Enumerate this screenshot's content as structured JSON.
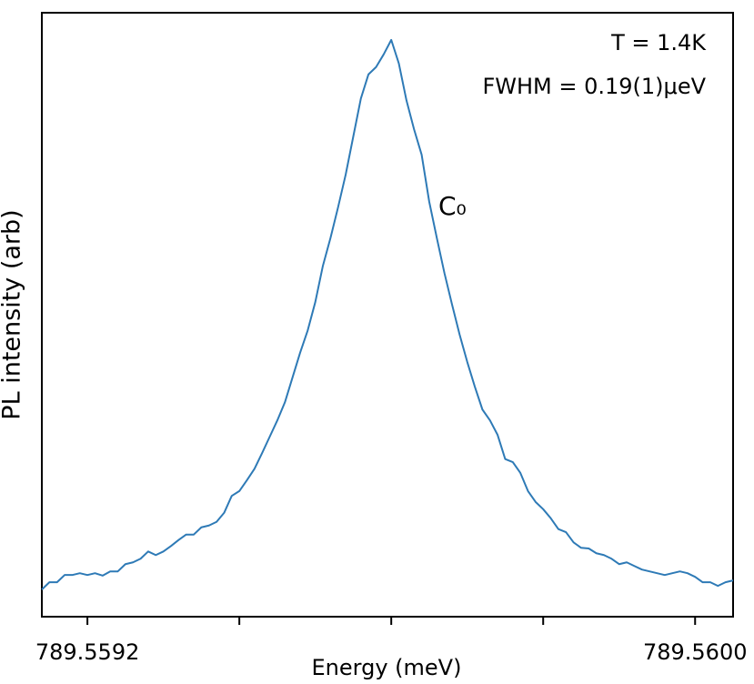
{
  "chart_data": {
    "type": "line",
    "xlabel": "Energy (meV)",
    "ylabel": "PL intensity (arb)",
    "annotations": [
      "T = 1.4K",
      "FWHM = 0.19(1)μeV",
      "C₀"
    ],
    "x": [
      789.55914,
      789.55915,
      789.55916,
      789.55917,
      789.55918,
      789.55919,
      789.5592,
      789.55921,
      789.55922,
      789.55923,
      789.55924,
      789.55925,
      789.55926,
      789.55927,
      789.55928,
      789.55929,
      789.5593,
      789.55931,
      789.55932,
      789.55933,
      789.55934,
      789.55935,
      789.55936,
      789.55937,
      789.55938,
      789.55939,
      789.5594,
      789.55941,
      789.55942,
      789.55943,
      789.55944,
      789.55945,
      789.55946,
      789.55947,
      789.55948,
      789.55949,
      789.5595,
      789.55951,
      789.55952,
      789.55953,
      789.55954,
      789.55955,
      789.55956,
      789.55957,
      789.55958,
      789.55959,
      789.5596,
      789.55961,
      789.55962,
      789.55963,
      789.55964,
      789.55965,
      789.55966,
      789.55967,
      789.55968,
      789.55969,
      789.5597,
      789.55971,
      789.55972,
      789.55973,
      789.55974,
      789.55975,
      789.55976,
      789.55977,
      789.55978,
      789.55979,
      789.5598,
      789.55981,
      789.55982,
      789.55983,
      789.55984,
      789.55985,
      789.55986,
      789.55987,
      789.55988,
      789.55989,
      789.5599,
      789.55991,
      789.55992,
      789.55993,
      789.55994,
      789.55995,
      789.55996,
      789.55997,
      789.55998,
      789.55999,
      789.56,
      789.56001,
      789.56002,
      789.56003,
      789.56004,
      789.56005
    ],
    "series": [
      {
        "name": "C₀",
        "color": "#2e7ab6",
        "values": [
          4.5,
          5.7,
          5.7,
          6.9,
          6.9,
          7.2,
          6.9,
          7.2,
          6.8,
          7.5,
          7.5,
          8.7,
          9.0,
          9.6,
          10.8,
          10.2,
          10.8,
          11.7,
          12.7,
          13.6,
          13.6,
          14.8,
          15.1,
          15.7,
          17.2,
          20.0,
          20.8,
          22.6,
          24.5,
          27.1,
          29.8,
          32.5,
          35.5,
          39.6,
          43.7,
          47.4,
          52.1,
          58.1,
          62.7,
          67.8,
          73.2,
          79.5,
          85.8,
          89.8,
          91.0,
          93.1,
          95.5,
          91.6,
          85.5,
          80.7,
          76.5,
          68.7,
          62.7,
          56.9,
          51.7,
          46.7,
          42.2,
          38.1,
          34.3,
          32.5,
          30.1,
          26.1,
          25.6,
          23.8,
          20.8,
          19.0,
          17.8,
          16.3,
          14.5,
          14.0,
          12.3,
          11.4,
          11.3,
          10.5,
          10.2,
          9.6,
          8.7,
          9.0,
          8.4,
          7.8,
          7.5,
          7.2,
          6.9,
          7.2,
          7.5,
          7.2,
          6.6,
          5.7,
          5.7,
          5.1,
          5.7,
          6.0
        ]
      }
    ],
    "xlim": [
      789.55914,
      789.56005
    ],
    "xticks": [
      789.5592,
      {
        "value": 789.5594,
        "label": null
      },
      {
        "value": 789.5596,
        "label": null
      },
      {
        "value": 789.5598,
        "label": null
      },
      {
        "value": 789.56,
        "label": "789.5600"
      }
    ],
    "ylim": [
      0,
      100
    ],
    "grid": false
  }
}
